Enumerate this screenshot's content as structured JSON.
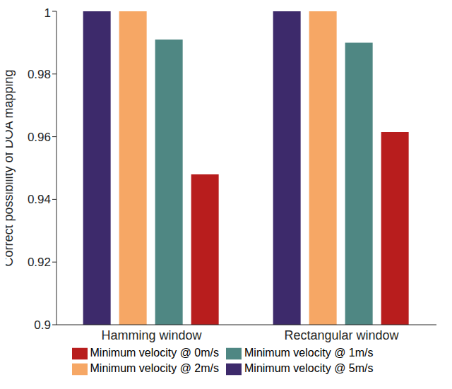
{
  "chart_data": {
    "type": "bar",
    "categories": [
      "Hamming window",
      "Rectangular window"
    ],
    "y_label": "Correct possibility of DOA mapping",
    "series": [
      {
        "name": "Minimum velocity @ 5m/s",
        "color": "#3d2a6b",
        "values": [
          1,
          1
        ]
      },
      {
        "name": "Minimum velocity @ 2m/s",
        "color": "#f6a765",
        "values": [
          1,
          1
        ]
      },
      {
        "name": "Minimum velocity @ 1m/s",
        "color": "#4f8783",
        "values": [
          0.991,
          0.99
        ]
      },
      {
        "name": "Minimum velocity @ 0m/s",
        "color": "#b81d1d",
        "values": [
          0.948,
          0.9615
        ]
      }
    ],
    "ylim": [
      0.9,
      1
    ],
    "yticks": [
      0.9,
      0.92,
      0.94,
      0.96,
      0.98,
      1
    ],
    "legend": "bottom",
    "grid": false
  }
}
